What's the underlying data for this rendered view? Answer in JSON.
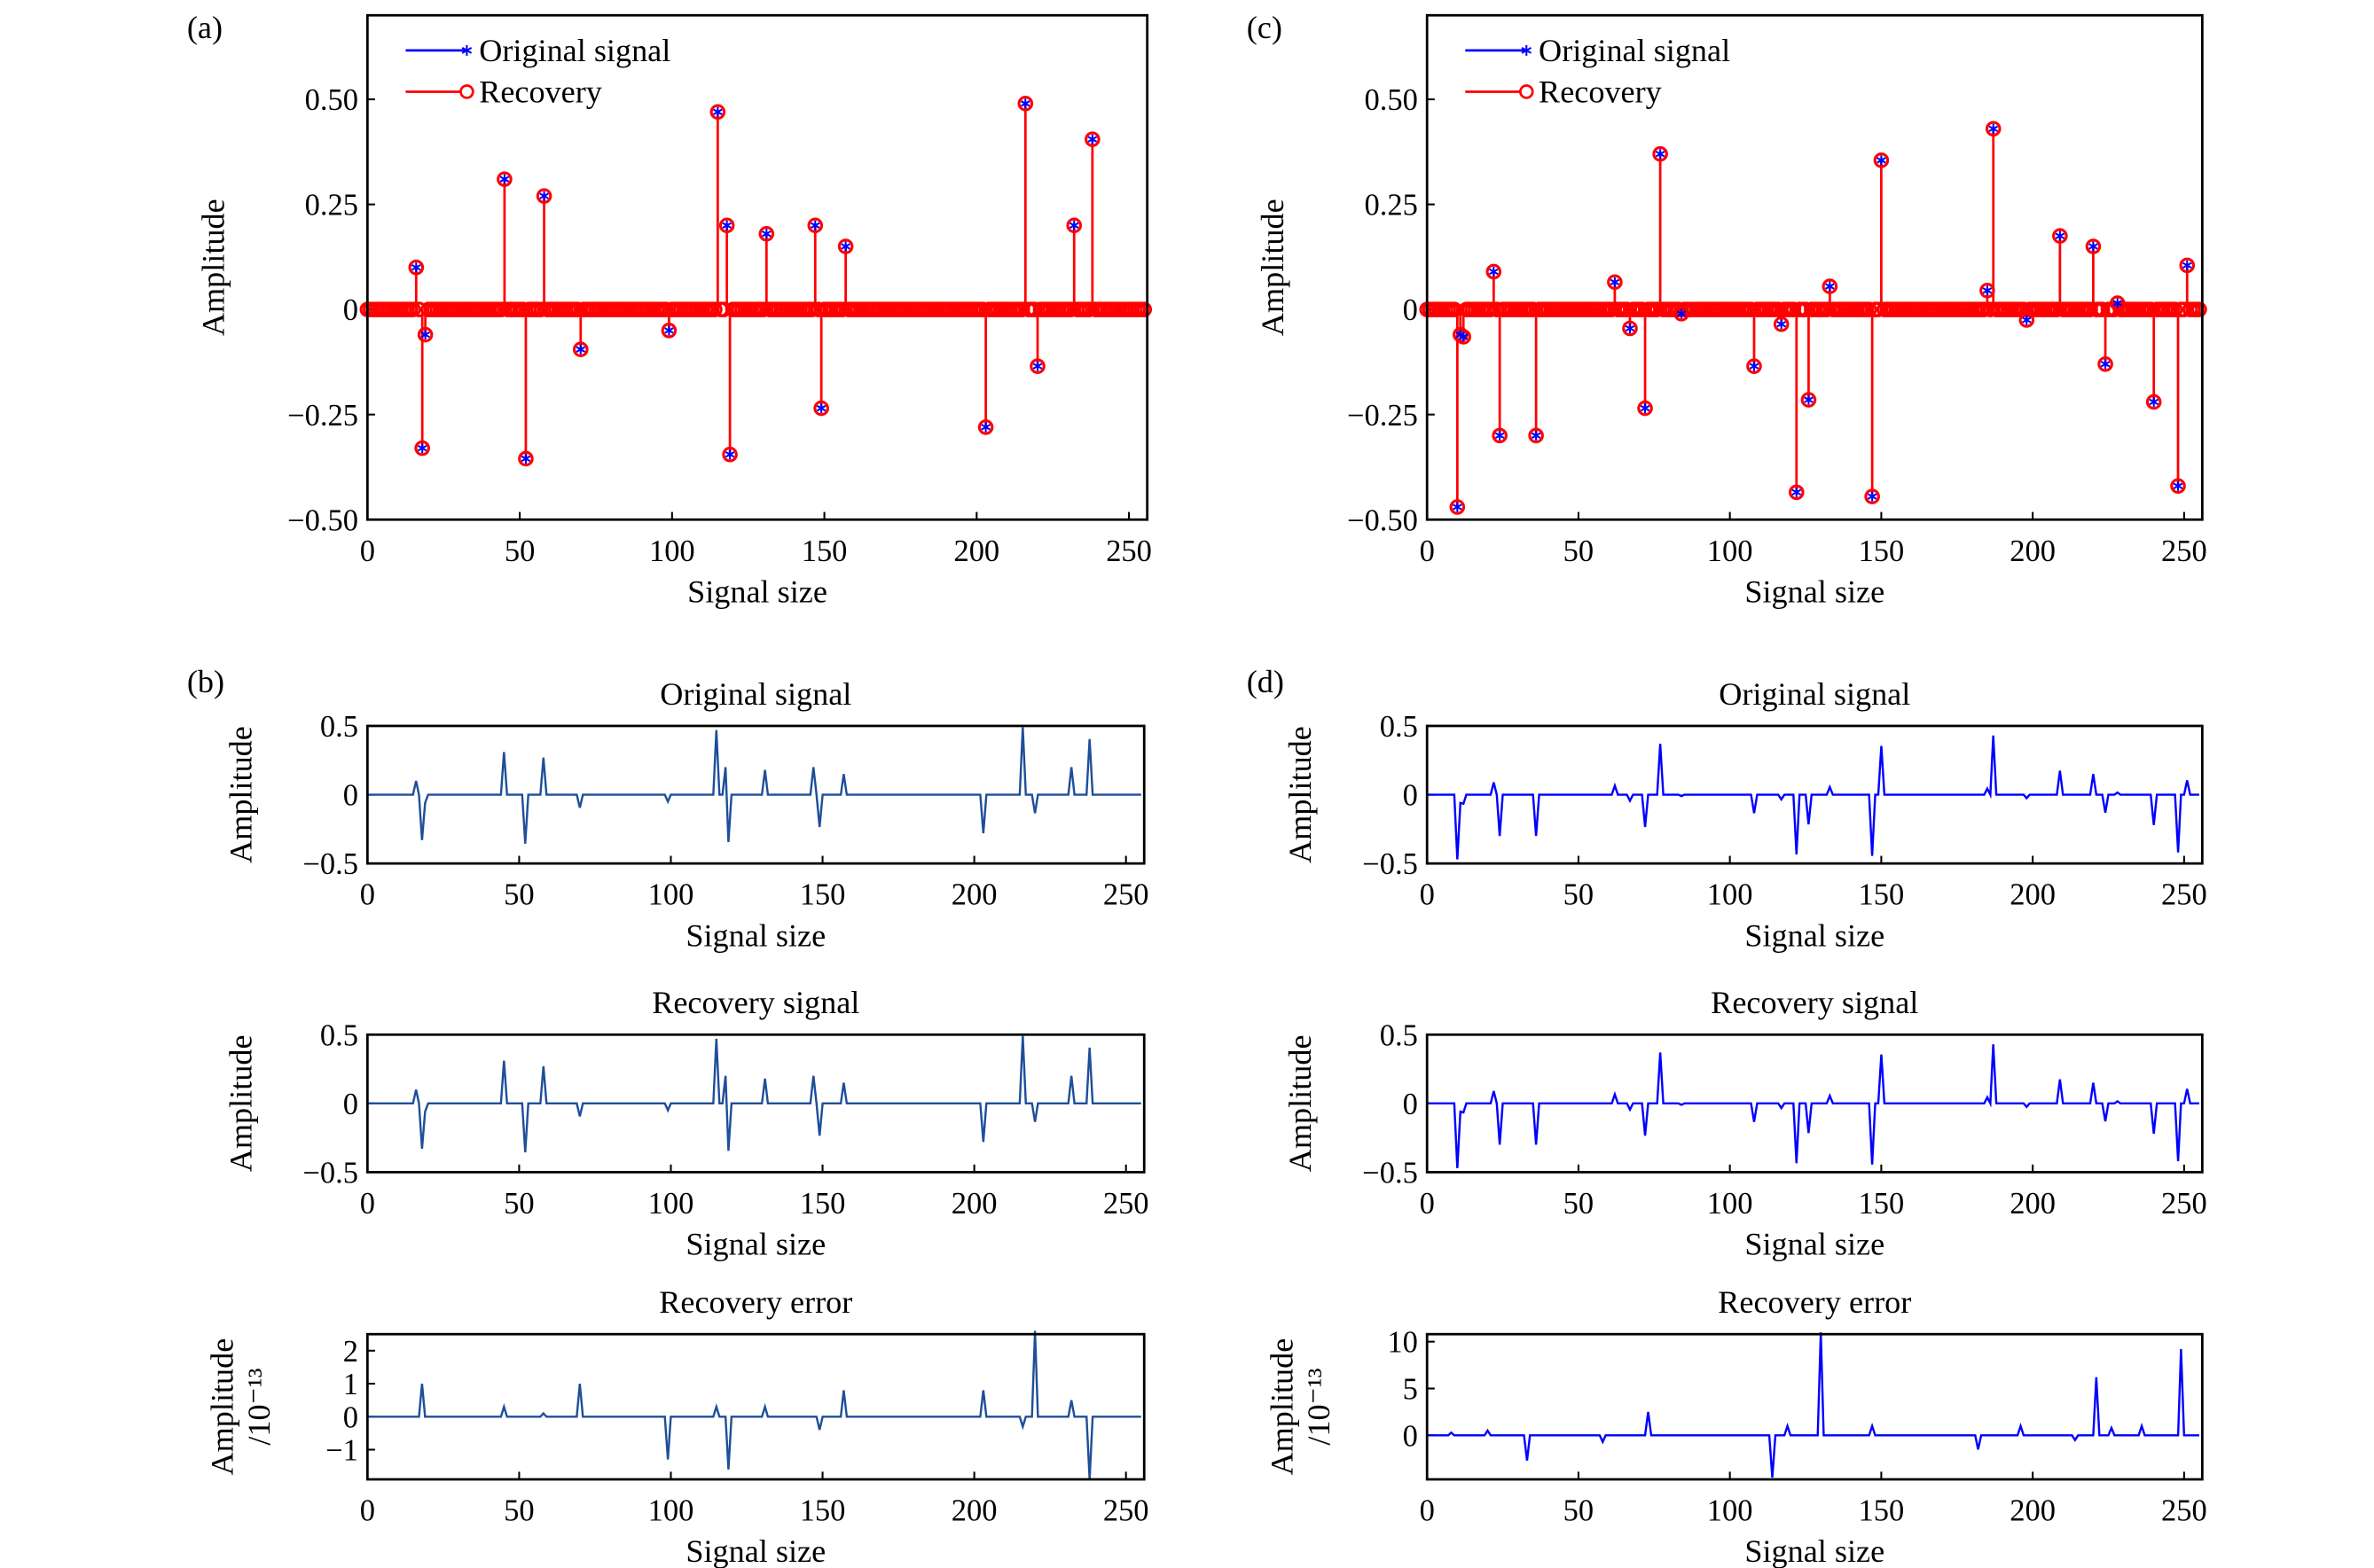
{
  "colors": {
    "original": "#0000ff",
    "recovery": "#ff0000",
    "line": "#1f4e9a",
    "axes": "#000000"
  },
  "chart_data": [
    {
      "id": "a",
      "panel_label": "(a)",
      "type": "stem",
      "xlabel": "Signal size",
      "ylabel": "Amplitude",
      "xlim": [
        0,
        256
      ],
      "ylim": [
        -0.5,
        0.7
      ],
      "xticks": [
        0,
        50,
        100,
        150,
        200,
        250
      ],
      "yticks": [
        -0.5,
        -0.25,
        0,
        0.25,
        0.5
      ],
      "ytick_labels": [
        "−0.50",
        "−0.25",
        "0",
        "0.25",
        "0.50"
      ],
      "legend": [
        "Original signal",
        "Recovery"
      ],
      "legend_position": "top-left",
      "signal_length": 256,
      "nonzero": [
        [
          16,
          0.1
        ],
        [
          18,
          -0.33
        ],
        [
          19,
          -0.06
        ],
        [
          45,
          0.31
        ],
        [
          52,
          -0.355
        ],
        [
          58,
          0.27
        ],
        [
          70,
          -0.095
        ],
        [
          99,
          -0.05
        ],
        [
          115,
          0.47
        ],
        [
          118,
          0.2
        ],
        [
          119,
          -0.345
        ],
        [
          131,
          0.18
        ],
        [
          147,
          0.2
        ],
        [
          149,
          -0.235
        ],
        [
          157,
          0.15
        ],
        [
          203,
          -0.28
        ],
        [
          216,
          0.49
        ],
        [
          220,
          -0.135
        ],
        [
          232,
          0.2
        ],
        [
          238,
          0.405
        ]
      ]
    },
    {
      "id": "c",
      "panel_label": "(c)",
      "type": "stem",
      "xlabel": "Signal size",
      "ylabel": "Amplitude",
      "xlim": [
        0,
        256
      ],
      "ylim": [
        -0.5,
        0.7
      ],
      "xticks": [
        0,
        50,
        100,
        150,
        200,
        250
      ],
      "yticks": [
        -0.5,
        -0.25,
        0,
        0.25,
        0.5
      ],
      "ytick_labels": [
        "−0.50",
        "−0.25",
        "0",
        "0.25",
        "0.50"
      ],
      "legend": [
        "Original signal",
        "Recovery"
      ],
      "legend_position": "top-left",
      "signal_length": 256,
      "nonzero": [
        [
          10,
          -0.47
        ],
        [
          11,
          -0.06
        ],
        [
          12,
          -0.065
        ],
        [
          22,
          0.09
        ],
        [
          24,
          -0.3
        ],
        [
          36,
          -0.3
        ],
        [
          62,
          0.065
        ],
        [
          67,
          -0.045
        ],
        [
          72,
          -0.235
        ],
        [
          77,
          0.37
        ],
        [
          84,
          -0.01
        ],
        [
          108,
          -0.135
        ],
        [
          117,
          -0.035
        ],
        [
          122,
          -0.435
        ],
        [
          126,
          -0.215
        ],
        [
          133,
          0.055
        ],
        [
          147,
          -0.445
        ],
        [
          150,
          0.355
        ],
        [
          185,
          0.045
        ],
        [
          187,
          0.43
        ],
        [
          198,
          -0.025
        ],
        [
          209,
          0.175
        ],
        [
          220,
          0.15
        ],
        [
          224,
          -0.13
        ],
        [
          228,
          0.015
        ],
        [
          240,
          -0.22
        ],
        [
          248,
          -0.42
        ],
        [
          251,
          0.105
        ]
      ]
    },
    {
      "id": "b1",
      "panel_label": "(b)",
      "type": "line",
      "title": "Original signal",
      "xlabel": "Signal size",
      "ylabel": "Amplitude",
      "xlim": [
        0,
        256
      ],
      "ylim": [
        -0.5,
        0.5
      ],
      "xticks": [
        0,
        50,
        100,
        150,
        200,
        250
      ],
      "yticks": [
        -0.5,
        0,
        0.5
      ],
      "ytick_labels": [
        "−0.5",
        "0",
        "0.5"
      ],
      "source": "a"
    },
    {
      "id": "b2",
      "type": "line",
      "title": "Recovery signal",
      "xlabel": "Signal size",
      "ylabel": "Amplitude",
      "xlim": [
        0,
        256
      ],
      "ylim": [
        -0.5,
        0.5
      ],
      "xticks": [
        0,
        50,
        100,
        150,
        200,
        250
      ],
      "yticks": [
        -0.5,
        0,
        0.5
      ],
      "ytick_labels": [
        "−0.5",
        "0",
        "0.5"
      ],
      "source": "a"
    },
    {
      "id": "b3",
      "type": "line",
      "title": "Recovery error",
      "xlabel": "Signal size",
      "ylabel": "Amplitude",
      "ylabel2": "/10⁻¹³",
      "xlim": [
        0,
        256
      ],
      "ylim": [
        -1.9,
        2.5
      ],
      "xticks": [
        0,
        50,
        100,
        150,
        200,
        250
      ],
      "yticks": [
        -1,
        0,
        1,
        2
      ],
      "ytick_labels": [
        "−1",
        "0",
        "1",
        "2"
      ],
      "signal_length": 256,
      "nonzero": [
        [
          18,
          1.0
        ],
        [
          45,
          0.3
        ],
        [
          58,
          0.1
        ],
        [
          70,
          1.0
        ],
        [
          99,
          -1.3
        ],
        [
          115,
          0.3
        ],
        [
          119,
          -1.6
        ],
        [
          131,
          0.3
        ],
        [
          149,
          -0.4
        ],
        [
          157,
          0.8
        ],
        [
          203,
          0.8
        ],
        [
          216,
          -0.3
        ],
        [
          220,
          2.6
        ],
        [
          232,
          0.5
        ],
        [
          238,
          -1.9
        ]
      ]
    },
    {
      "id": "d1",
      "panel_label": "(d)",
      "type": "line",
      "title": "Original signal",
      "xlabel": "Signal size",
      "ylabel": "Amplitude",
      "xlim": [
        0,
        256
      ],
      "ylim": [
        -0.5,
        0.5
      ],
      "xticks": [
        0,
        50,
        100,
        150,
        200,
        250
      ],
      "yticks": [
        -0.5,
        0,
        0.5
      ],
      "ytick_labels": [
        "−0.5",
        "0",
        "0.5"
      ],
      "source": "c"
    },
    {
      "id": "d2",
      "type": "line",
      "title": "Recovery signal",
      "xlabel": "Signal size",
      "ylabel": "Amplitude",
      "xlim": [
        0,
        256
      ],
      "ylim": [
        -0.5,
        0.5
      ],
      "xticks": [
        0,
        50,
        100,
        150,
        200,
        250
      ],
      "yticks": [
        -0.5,
        0,
        0.5
      ],
      "ytick_labels": [
        "−0.5",
        "0",
        "0.5"
      ],
      "source": "c"
    },
    {
      "id": "d3",
      "type": "line",
      "title": "Recovery error",
      "xlabel": "Signal size",
      "ylabel": "Amplitude",
      "ylabel2": "/10⁻¹³",
      "xlim": [
        0,
        256
      ],
      "ylim": [
        -4.7,
        10.8
      ],
      "xticks": [
        0,
        50,
        100,
        150,
        200,
        250
      ],
      "yticks": [
        0,
        5,
        10
      ],
      "ytick_labels": [
        "0",
        "5",
        "10"
      ],
      "signal_length": 256,
      "nonzero": [
        [
          8,
          0.3
        ],
        [
          20,
          0.5
        ],
        [
          33,
          -2.7
        ],
        [
          58,
          -0.7
        ],
        [
          73,
          2.5
        ],
        [
          114,
          -4.5
        ],
        [
          119,
          1.0
        ],
        [
          130,
          11
        ],
        [
          147,
          1.0
        ],
        [
          182,
          -1.5
        ],
        [
          196,
          1.0
        ],
        [
          214,
          -0.5
        ],
        [
          221,
          6.2
        ],
        [
          226,
          0.8
        ],
        [
          236,
          1.0
        ],
        [
          249,
          9.2
        ]
      ]
    }
  ]
}
